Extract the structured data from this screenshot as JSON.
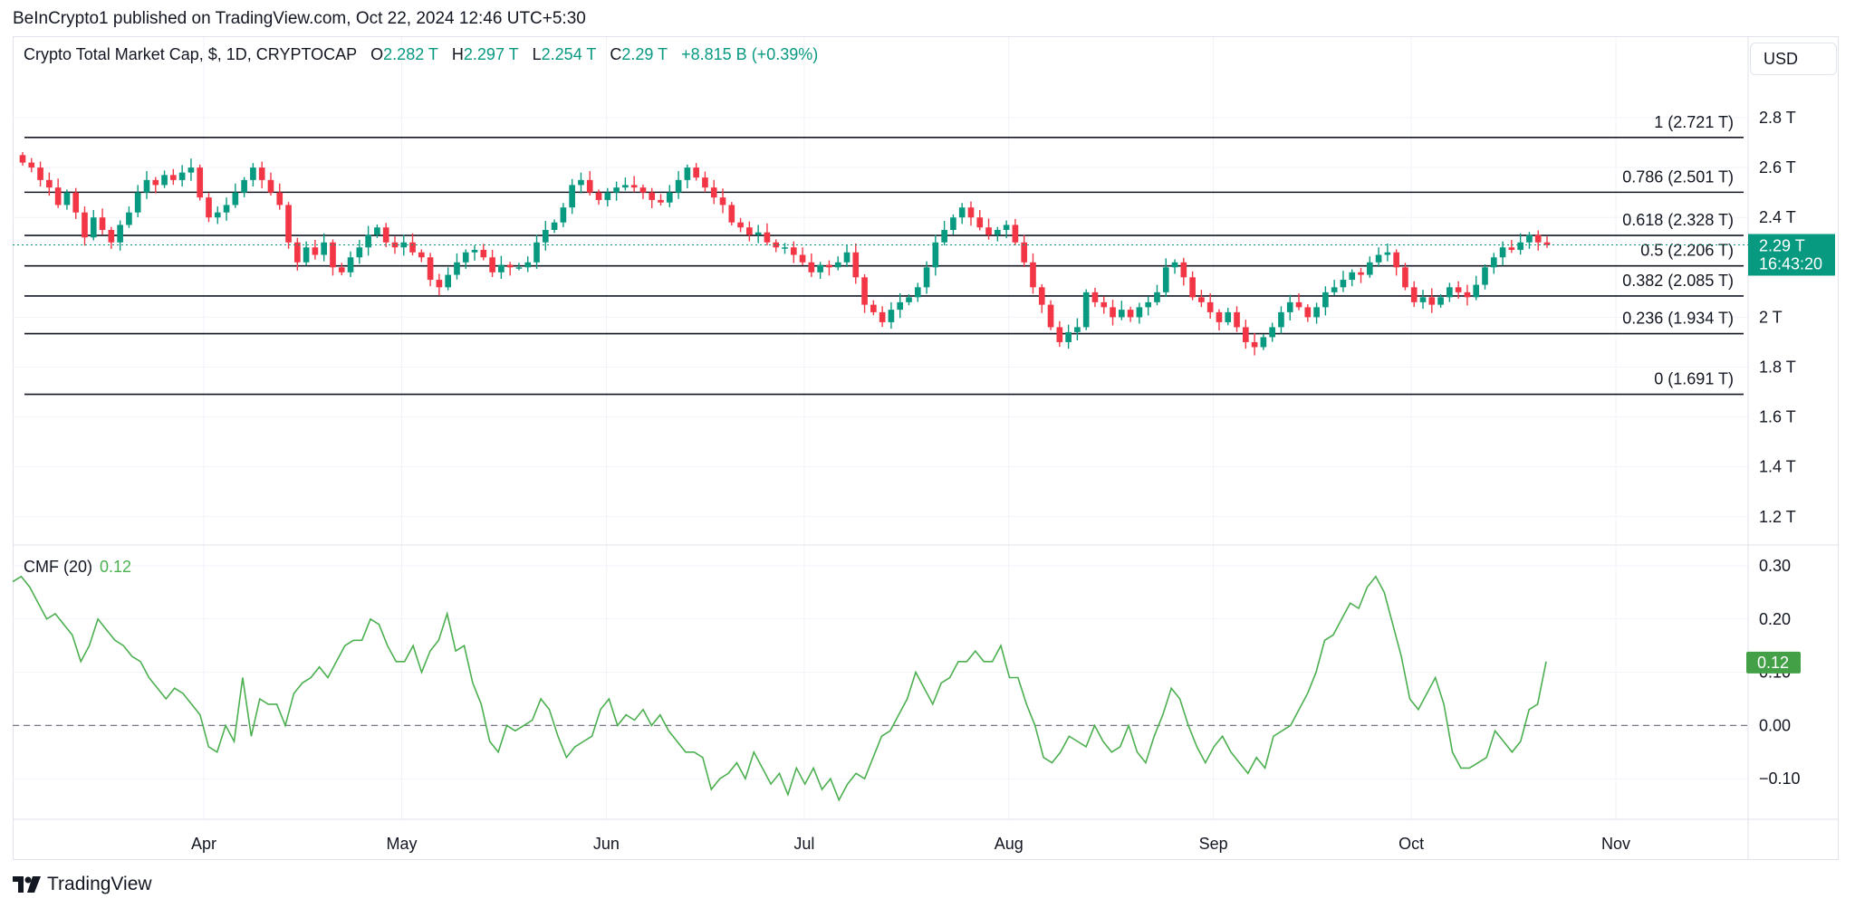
{
  "attribution": "BeInCrypto1 published on TradingView.com, Oct 22, 2024 12:46 UTC+5:30",
  "legend": {
    "symbol": "Crypto Total Market Cap, $, 1D, CRYPTOCAP",
    "o_label": "O",
    "o_value": "2.282 T",
    "h_label": "H",
    "h_value": "2.297 T",
    "l_label": "L",
    "l_value": "2.254 T",
    "c_label": "C",
    "c_value": "2.29 T",
    "change": "+8.815 B (+0.39%)"
  },
  "currency_button": "USD",
  "cmf_legend": {
    "name": "CMF (20)",
    "value": "0.12"
  },
  "brand": "TradingView",
  "colors": {
    "up": "#089981",
    "down": "#f23645",
    "cmf": "#4caf50",
    "badge_cmf": "#43a047"
  },
  "chart_data": [
    {
      "type": "candlestick",
      "title": "Crypto Total Market Cap, $, 1D, CRYPTOCAP",
      "x_labels": [
        "Apr",
        "May",
        "Jun",
        "Jul",
        "Aug",
        "Sep",
        "Oct",
        "Nov"
      ],
      "y_ticks": [
        "2.8 T",
        "2.6 T",
        "2.4 T",
        "2 T",
        "1.8 T",
        "1.6 T",
        "1.4 T",
        "1.2 T"
      ],
      "y_tick_values": [
        2.8,
        2.6,
        2.4,
        2.0,
        1.8,
        1.6,
        1.4,
        1.2
      ],
      "ylim": [
        1.1,
        2.9
      ],
      "start_date": "2024-03-12",
      "last_price_badge": {
        "value": "2.29 T",
        "countdown": "16:43:20",
        "price": 2.29
      },
      "fib_levels": [
        {
          "label": "1 (2.721 T)",
          "value": 2.721
        },
        {
          "label": "0.786 (2.501 T)",
          "value": 2.501
        },
        {
          "label": "0.618 (2.328 T)",
          "value": 2.328
        },
        {
          "label": "0.5 (2.206 T)",
          "value": 2.206
        },
        {
          "label": "0.382 (2.085 T)",
          "value": 2.085
        },
        {
          "label": "0.236 (1.934 T)",
          "value": 1.934
        },
        {
          "label": "0 (1.691 T)",
          "value": 1.691
        }
      ],
      "closes": [
        2.62,
        2.6,
        2.55,
        2.52,
        2.45,
        2.5,
        2.42,
        2.32,
        2.4,
        2.35,
        2.3,
        2.37,
        2.42,
        2.5,
        2.55,
        2.53,
        2.57,
        2.55,
        2.58,
        2.6,
        2.48,
        2.4,
        2.42,
        2.45,
        2.5,
        2.55,
        2.6,
        2.55,
        2.5,
        2.45,
        2.3,
        2.22,
        2.28,
        2.25,
        2.3,
        2.2,
        2.18,
        2.24,
        2.28,
        2.33,
        2.36,
        2.3,
        2.28,
        2.3,
        2.26,
        2.24,
        2.15,
        2.12,
        2.17,
        2.22,
        2.26,
        2.27,
        2.24,
        2.18,
        2.21,
        2.2,
        2.2,
        2.22,
        2.3,
        2.35,
        2.38,
        2.44,
        2.53,
        2.55,
        2.5,
        2.47,
        2.5,
        2.52,
        2.53,
        2.52,
        2.5,
        2.47,
        2.46,
        2.5,
        2.55,
        2.6,
        2.56,
        2.52,
        2.48,
        2.45,
        2.38,
        2.36,
        2.33,
        2.34,
        2.3,
        2.28,
        2.28,
        2.25,
        2.22,
        2.18,
        2.21,
        2.2,
        2.22,
        2.26,
        2.16,
        2.05,
        2.02,
        1.98,
        2.03,
        2.06,
        2.08,
        2.12,
        2.2,
        2.3,
        2.35,
        2.4,
        2.44,
        2.4,
        2.36,
        2.33,
        2.35,
        2.37,
        2.3,
        2.22,
        2.12,
        2.05,
        1.96,
        1.9,
        1.94,
        1.96,
        2.1,
        2.06,
        2.04,
        2.0,
        2.03,
        2.0,
        2.04,
        2.06,
        2.1,
        2.2,
        2.22,
        2.16,
        2.08,
        2.06,
        2.02,
        1.98,
        2.02,
        1.96,
        1.9,
        1.88,
        1.92,
        1.96,
        2.02,
        2.06,
        2.04,
        2.0,
        2.04,
        2.1,
        2.12,
        2.15,
        2.18,
        2.17,
        2.22,
        2.25,
        2.26,
        2.2,
        2.12,
        2.06,
        2.08,
        2.05,
        2.08,
        2.12,
        2.1,
        2.08,
        2.13,
        2.2,
        2.24,
        2.28,
        2.27,
        2.3,
        2.33,
        2.3,
        2.29
      ],
      "y_fmt": "T"
    },
    {
      "type": "line",
      "title": "CMF (20)",
      "y_ticks": [
        "0.30",
        "0.20",
        "0.10",
        "0.00",
        "−0.10"
      ],
      "y_tick_values": [
        0.3,
        0.2,
        0.1,
        0.0,
        -0.1
      ],
      "ylim": [
        -0.16,
        0.33
      ],
      "last_value_badge": "0.12",
      "values": [
        0.27,
        0.28,
        0.26,
        0.23,
        0.2,
        0.21,
        0.19,
        0.17,
        0.12,
        0.15,
        0.2,
        0.18,
        0.16,
        0.15,
        0.13,
        0.12,
        0.09,
        0.07,
        0.05,
        0.07,
        0.06,
        0.04,
        0.02,
        -0.04,
        -0.05,
        0.0,
        -0.03,
        0.09,
        -0.02,
        0.05,
        0.04,
        0.04,
        0.0,
        0.06,
        0.08,
        0.09,
        0.11,
        0.09,
        0.12,
        0.15,
        0.16,
        0.16,
        0.2,
        0.19,
        0.15,
        0.12,
        0.12,
        0.15,
        0.1,
        0.14,
        0.16,
        0.21,
        0.14,
        0.15,
        0.08,
        0.04,
        -0.03,
        -0.05,
        0.0,
        -0.01,
        0.0,
        0.01,
        0.05,
        0.03,
        -0.02,
        -0.06,
        -0.04,
        -0.03,
        -0.02,
        0.03,
        0.05,
        0.0,
        0.02,
        0.01,
        0.03,
        0.0,
        0.02,
        -0.01,
        -0.03,
        -0.05,
        -0.05,
        -0.06,
        -0.12,
        -0.1,
        -0.09,
        -0.07,
        -0.1,
        -0.05,
        -0.08,
        -0.11,
        -0.09,
        -0.13,
        -0.08,
        -0.11,
        -0.08,
        -0.12,
        -0.1,
        -0.14,
        -0.11,
        -0.09,
        -0.1,
        -0.06,
        -0.02,
        -0.01,
        0.02,
        0.05,
        0.1,
        0.07,
        0.04,
        0.08,
        0.09,
        0.12,
        0.12,
        0.14,
        0.12,
        0.12,
        0.15,
        0.09,
        0.09,
        0.04,
        0.0,
        -0.06,
        -0.07,
        -0.05,
        -0.02,
        -0.03,
        -0.04,
        0.0,
        -0.03,
        -0.05,
        -0.04,
        0.0,
        -0.05,
        -0.07,
        -0.02,
        0.02,
        0.07,
        0.05,
        0.0,
        -0.04,
        -0.07,
        -0.04,
        -0.02,
        -0.05,
        -0.07,
        -0.09,
        -0.06,
        -0.08,
        -0.02,
        -0.01,
        0.0,
        0.03,
        0.06,
        0.1,
        0.16,
        0.17,
        0.2,
        0.23,
        0.22,
        0.26,
        0.28,
        0.25,
        0.19,
        0.13,
        0.05,
        0.03,
        0.06,
        0.09,
        0.04,
        -0.05,
        -0.08,
        -0.08,
        -0.07,
        -0.06,
        -0.01,
        -0.03,
        -0.05,
        -0.03,
        0.03,
        0.04,
        0.12
      ]
    }
  ]
}
